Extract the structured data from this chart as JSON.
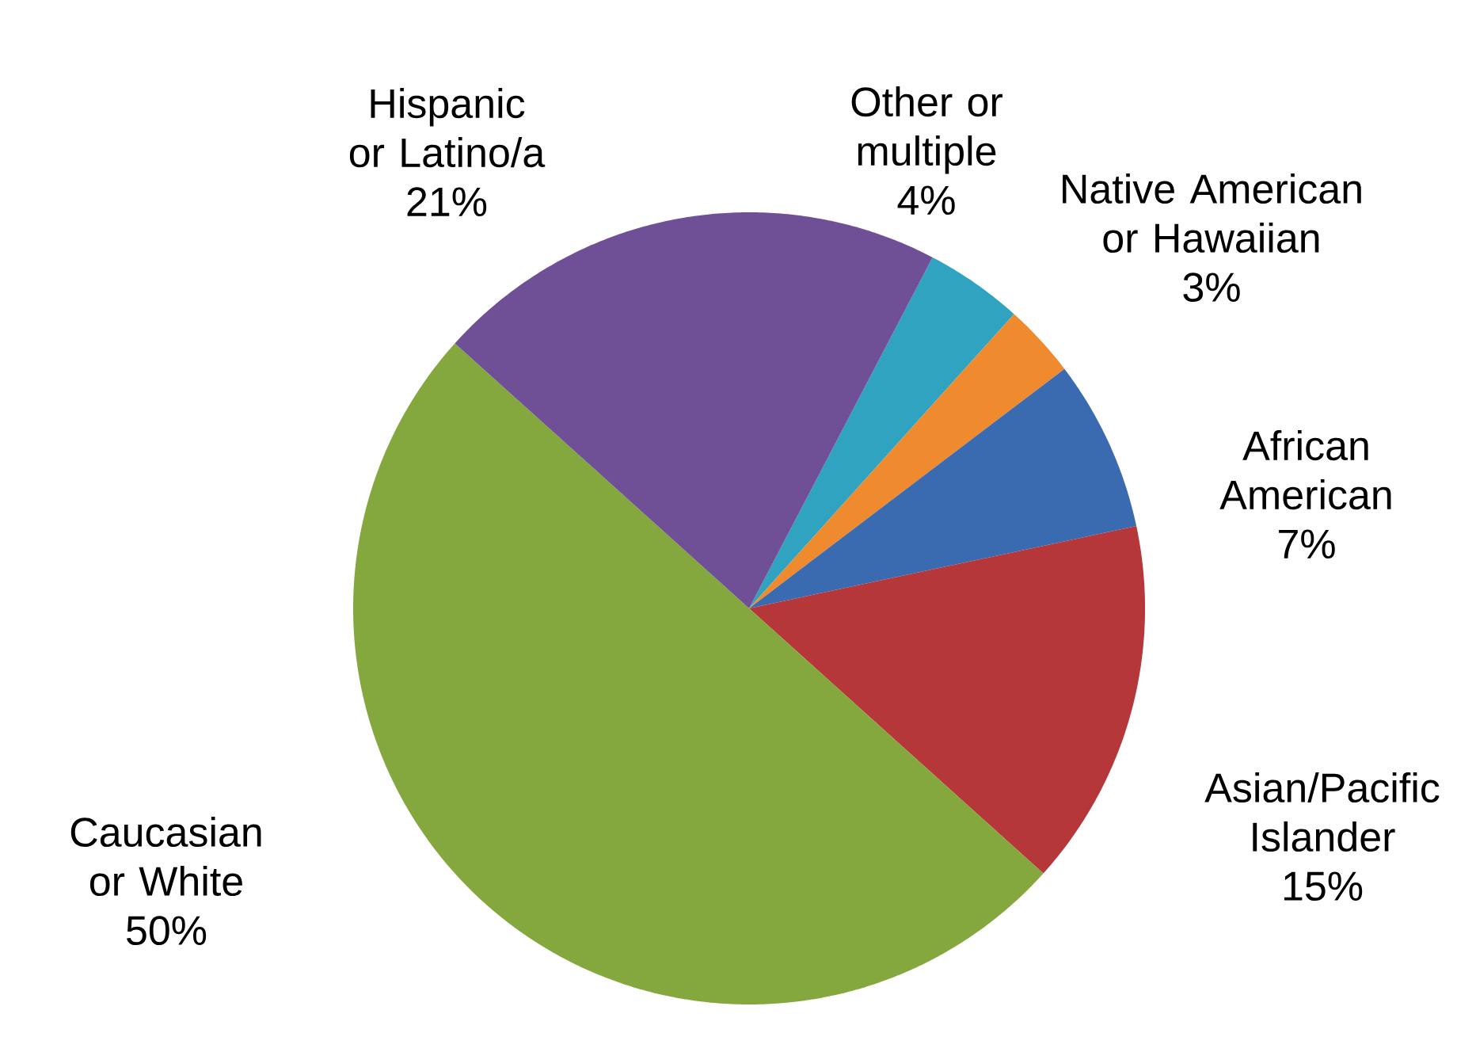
{
  "chart_data": {
    "type": "pie",
    "categories": [
      "Other or multiple",
      "Native American or Hawaiian",
      "African American",
      "Asian/Pacific Islander",
      "Caucasian or White",
      "Hispanic or Latino/a"
    ],
    "values": [
      4,
      3,
      7,
      15,
      50,
      21
    ],
    "value_labels": [
      "4%",
      "3%",
      "7%",
      "15%",
      "50%",
      "21%"
    ],
    "colors": [
      "#2fa3bf",
      "#ef8a2e",
      "#3a6bb0",
      "#b5373a",
      "#84a83d",
      "#6f4f96"
    ]
  }
}
